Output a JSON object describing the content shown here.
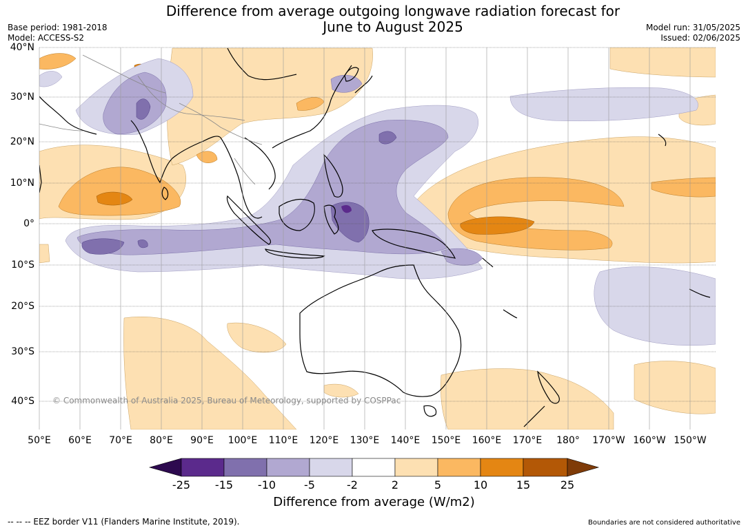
{
  "header": {
    "title_line1": "Difference from average outgoing longwave radiation forecast for",
    "title_line2": "June to August 2025",
    "base_period": "Base period: 1981-2018",
    "model": "Model: ACCESS-S2",
    "model_run": "Model run: 31/05/2025",
    "issued": "Issued: 02/06/2025"
  },
  "map": {
    "lat_labels": [
      "40°N",
      "30°N",
      "20°N",
      "10°N",
      "0°",
      "10°S",
      "20°S",
      "30°S",
      "40°S"
    ],
    "lon_labels": [
      "50°E",
      "60°E",
      "70°E",
      "80°E",
      "90°E",
      "100°E",
      "110°E",
      "120°E",
      "130°E",
      "140°E",
      "150°E",
      "160°E",
      "170°E",
      "180°",
      "170°W",
      "160°W",
      "150°W"
    ],
    "copyright": "© Commonwealth of Australia 2025, Bureau of Meteorology, supported by COSPPac",
    "colors": {
      "land_outline": "#000000",
      "border": "#888888",
      "grid": "#555555",
      "ocean": "#ffffff"
    }
  },
  "colorbar": {
    "tick_labels": [
      "-25",
      "-15",
      "-10",
      "-5",
      "-2",
      "2",
      "5",
      "10",
      "15",
      "25"
    ],
    "colors": [
      "#2d0a4f",
      "#5b2a8c",
      "#8070ad",
      "#b1a8d1",
      "#d8d7ea",
      "#ffffff",
      "#fde0b2",
      "#fbb861",
      "#e48613",
      "#b35806",
      "#7f3b08"
    ],
    "title": "Difference from average (W/m2)"
  },
  "footer": {
    "eez": "--  --  -- EEZ border V11 (Flanders Marine Institute, 2019).",
    "disclaimer": "Boundaries are not considered authoritative"
  }
}
